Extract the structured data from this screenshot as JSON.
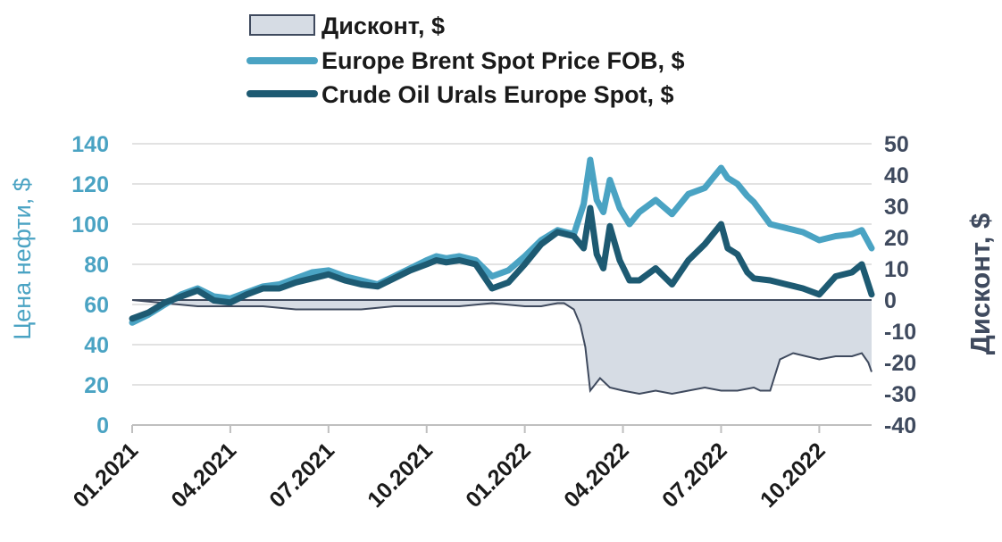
{
  "chart_data": {
    "type": "line",
    "colors": {
      "brent": "#4aa3c3",
      "urals": "#1d5a72",
      "discount_fill": "#d6dce4",
      "discount_line": "#3f4a5e",
      "axis_left": "#4aa3c3",
      "axis_right": "#3f4a5e",
      "grid": "#d9d9d9"
    },
    "legend": [
      {
        "key": "discount",
        "label": "Дисконт, $"
      },
      {
        "key": "brent",
        "label": "Europe Brent Spot Price FOB, $"
      },
      {
        "key": "urals",
        "label": "Crude Oil Urals Europe Spot, $"
      }
    ],
    "x_axis": {
      "tick_labels": [
        "01.2021",
        "04.2021",
        "07.2021",
        "10.2021",
        "01.2022",
        "04.2022",
        "07.2022",
        "10.2022"
      ],
      "tick_months": [
        0,
        3,
        6,
        9,
        12,
        15,
        18,
        21
      ],
      "range_months": [
        0,
        22.6
      ]
    },
    "y_left": {
      "label": "Цена нефти, $",
      "range": [
        0,
        140
      ],
      "ticks": [
        "0",
        "20",
        "40",
        "60",
        "80",
        "100",
        "120",
        "140"
      ]
    },
    "y_right": {
      "label": "Дисконт, $",
      "range": [
        -40,
        50
      ],
      "ticks": [
        "-40",
        "-30",
        "-20",
        "-10",
        "0",
        "10",
        "20",
        "30",
        "40",
        "50"
      ]
    },
    "series": [
      {
        "name": "Europe Brent Spot Price FOB, $",
        "axis": "left",
        "x": [
          0,
          0.5,
          1,
          1.5,
          2,
          2.5,
          3,
          3.5,
          4,
          4.5,
          5,
          5.5,
          6,
          6.5,
          7,
          7.5,
          8,
          8.5,
          9,
          9.3,
          9.6,
          10,
          10.5,
          11,
          11.5,
          12,
          12.5,
          13,
          13.5,
          13.8,
          14,
          14.2,
          14.4,
          14.6,
          14.9,
          15.2,
          15.5,
          16,
          16.5,
          17,
          17.5,
          18,
          18.2,
          18.5,
          18.8,
          19,
          19.5,
          20,
          20.5,
          21,
          21.5,
          22,
          22.3,
          22.6
        ],
        "values": [
          51,
          55,
          60,
          65,
          68,
          64,
          63,
          66,
          69,
          70,
          73,
          76,
          77,
          74,
          72,
          70,
          74,
          78,
          82,
          84,
          83,
          84,
          82,
          74,
          77,
          84,
          92,
          97,
          95,
          110,
          132,
          112,
          106,
          122,
          108,
          100,
          106,
          112,
          105,
          115,
          118,
          128,
          123,
          120,
          114,
          111,
          100,
          98,
          96,
          92,
          94,
          95,
          97,
          88
        ]
      },
      {
        "name": "Crude Oil Urals Europe Spot, $",
        "axis": "left",
        "x": [
          0,
          0.5,
          1,
          1.5,
          2,
          2.5,
          3,
          3.5,
          4,
          4.5,
          5,
          5.5,
          6,
          6.5,
          7,
          7.5,
          8,
          8.5,
          9,
          9.3,
          9.6,
          10,
          10.5,
          11,
          11.5,
          12,
          12.5,
          13,
          13.5,
          13.8,
          14,
          14.2,
          14.4,
          14.6,
          14.9,
          15.2,
          15.5,
          16,
          16.5,
          17,
          17.5,
          18,
          18.2,
          18.5,
          18.8,
          19,
          19.5,
          20,
          20.5,
          21,
          21.5,
          22,
          22.3,
          22.6
        ],
        "values": [
          53,
          56,
          61,
          64,
          67,
          62,
          61,
          65,
          68,
          68,
          71,
          73,
          75,
          72,
          70,
          69,
          73,
          77,
          80,
          82,
          81,
          82,
          80,
          68,
          71,
          80,
          90,
          96,
          94,
          88,
          108,
          85,
          78,
          99,
          82,
          72,
          72,
          78,
          70,
          82,
          90,
          100,
          88,
          85,
          76,
          73,
          72,
          70,
          68,
          65,
          74,
          76,
          80,
          65
        ]
      },
      {
        "name": "Дисконт, $",
        "axis": "right",
        "x": [
          0,
          1,
          2,
          3,
          4,
          5,
          6,
          7,
          8,
          9,
          10,
          11,
          12,
          12.5,
          13,
          13.2,
          13.5,
          13.7,
          13.85,
          14,
          14.3,
          14.6,
          15,
          15.5,
          16,
          16.5,
          17,
          17.5,
          18,
          18.5,
          19,
          19.2,
          19.5,
          19.8,
          20.2,
          20.6,
          21,
          21.5,
          22,
          22.3,
          22.5,
          22.6
        ],
        "values": [
          0,
          -1,
          -2,
          -2,
          -2,
          -3,
          -3,
          -3,
          -2,
          -2,
          -2,
          -1,
          -2,
          -2,
          -1,
          -1,
          -3,
          -8,
          -15,
          -29,
          -25,
          -28,
          -29,
          -30,
          -29,
          -30,
          -29,
          -28,
          -29,
          -29,
          -28,
          -29,
          -29,
          -19,
          -17,
          -18,
          -19,
          -18,
          -18,
          -17,
          -20,
          -23
        ]
      }
    ]
  }
}
